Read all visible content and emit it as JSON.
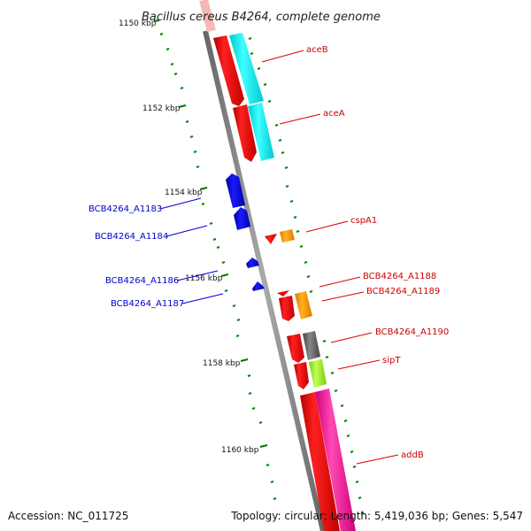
{
  "map": {
    "title": "Bacillus cereus B4264, complete genome",
    "accession": "Accession: NC_011725",
    "summary": "Topology: circular; Length: 5,419,036 bp; Genes: 5,547"
  },
  "scale_labels": [
    "1150 kbp",
    "1152 kbp",
    "1154 kbp",
    "1156 kbp",
    "1158 kbp",
    "1160 kbp"
  ],
  "genes": [
    {
      "label": "aceB",
      "strand": "forward",
      "color": "#ee0000"
    },
    {
      "label": "aceA",
      "strand": "forward",
      "color": "#ee0000"
    },
    {
      "label": "cspA1",
      "strand": "forward",
      "color": "#ee0000"
    },
    {
      "label": "BCB4264_A1188",
      "strand": "forward",
      "color": "#ee0000"
    },
    {
      "label": "BCB4264_A1189",
      "strand": "forward",
      "color": "#ee0000"
    },
    {
      "label": "BCB4264_A1190",
      "strand": "forward",
      "color": "#ee0000"
    },
    {
      "label": "sipT",
      "strand": "forward",
      "color": "#ee0000"
    },
    {
      "label": "addB",
      "strand": "forward",
      "color": "#ee0000"
    },
    {
      "label": "BCB4264_A1183",
      "strand": "reverse",
      "color": "#0000cc"
    },
    {
      "label": "BCB4264_A1184",
      "strand": "reverse",
      "color": "#0000cc"
    },
    {
      "label": "BCB4264_A1186",
      "strand": "reverse",
      "color": "#0000cc"
    },
    {
      "label": "BCB4264_A1187",
      "strand": "reverse",
      "color": "#0000cc"
    }
  ],
  "colors": {
    "backbone": "#8a8a8a",
    "forward_gene": "#ee0000",
    "reverse_gene": "#0000dd",
    "cog_cyan": "#00e5ee",
    "cog_orange": "#ff9900",
    "cog_gray": "#666666",
    "cog_lime": "#99ee33",
    "cog_pink": "#ff2aa0",
    "gc_dots": "#008800"
  }
}
